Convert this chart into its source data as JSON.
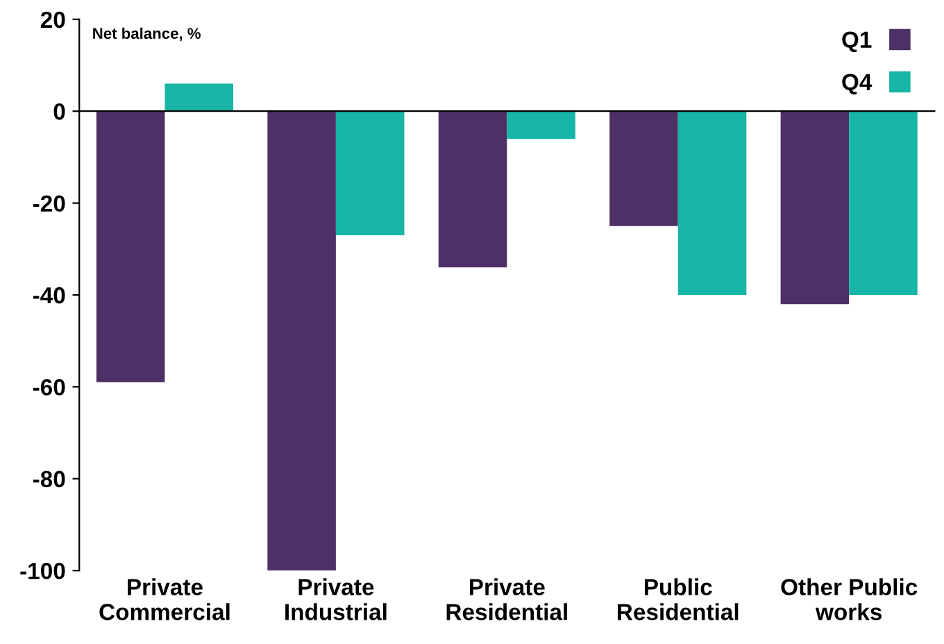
{
  "chart_data": {
    "type": "bar",
    "ylabel": "Net balance, %",
    "categories": [
      "Private\nCommercial",
      "Private\nIndustrial",
      "Private\nResidential",
      "Public\nResidential",
      "Other Public\nworks"
    ],
    "series": [
      {
        "name": "Q1",
        "color": "#4d3066",
        "values": [
          -59,
          -100,
          -34,
          -25,
          -42
        ]
      },
      {
        "name": "Q4",
        "color": "#16b5a5",
        "values": [
          6,
          -27,
          -6,
          -40,
          -40
        ]
      }
    ],
    "ylim": [
      -100,
      20
    ],
    "yticks": [
      -100,
      -80,
      -60,
      -40,
      -20,
      0,
      20
    ],
    "legend": "top right"
  }
}
